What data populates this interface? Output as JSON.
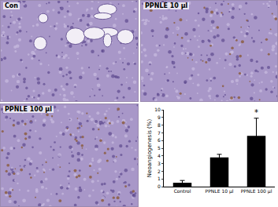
{
  "panels": [
    {
      "label": "Con"
    },
    {
      "label": "PPNLE 10 μl"
    },
    {
      "label": "PPNLE 100 μl"
    }
  ],
  "chart_data": {
    "type": "bar",
    "categories": [
      "Control",
      "PPNLE 10 μl",
      "PPNLE 100 μl"
    ],
    "values": [
      0.5,
      3.8,
      6.6
    ],
    "errors": [
      0.3,
      0.4,
      2.3
    ],
    "color": "#000000",
    "y_label": "Neoangiogenesis (%)",
    "ylim": [
      0,
      10
    ],
    "yticks": [
      0,
      1,
      2,
      3,
      4,
      5,
      6,
      7,
      8,
      9,
      10
    ],
    "grid": false,
    "annotations": [
      {
        "text": "*",
        "category": "PPNLE 100 μl"
      }
    ]
  }
}
